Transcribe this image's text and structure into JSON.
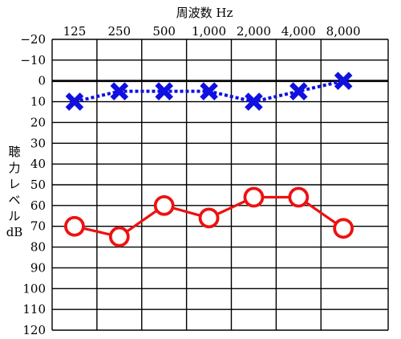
{
  "chart_data": {
    "type": "line",
    "title": "",
    "xlabel": "周波数 Hz",
    "ylabel": [
      "聴",
      "力",
      "レ",
      "ベ",
      "ル",
      "dB"
    ],
    "x_categories": [
      "125",
      "250",
      "500",
      "1,000",
      "2,000",
      "4,000",
      "8,000"
    ],
    "y_ticks": [
      "−20",
      "−10",
      "0",
      "10",
      "20",
      "30",
      "40",
      "50",
      "60",
      "70",
      "80",
      "90",
      "100",
      "110",
      "120"
    ],
    "ylim": [
      -20,
      120
    ],
    "y_inverted": true,
    "y_step": 10,
    "reference_line_y": 0,
    "grid": true,
    "series": [
      {
        "marker": "x",
        "line_style": "dotted",
        "color": "#1010e0",
        "values": [
          10,
          5,
          5,
          5,
          10,
          5,
          0
        ]
      },
      {
        "marker": "o",
        "line_style": "solid",
        "color": "#ee1111",
        "values": [
          70,
          75,
          60,
          66,
          56,
          56,
          71
        ]
      }
    ]
  }
}
